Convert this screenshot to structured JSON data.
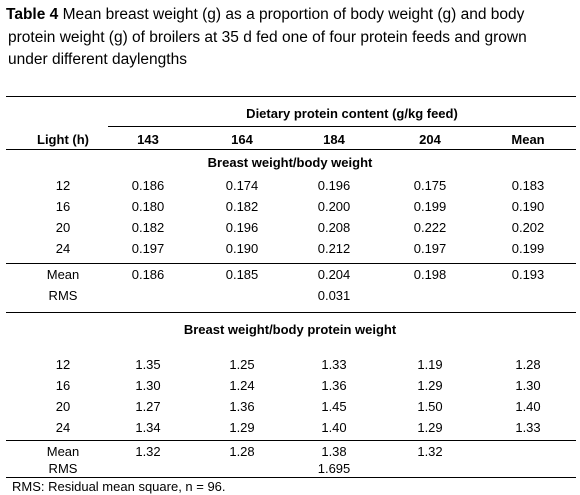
{
  "caption": {
    "label": "Table 4",
    "line1": " Mean breast weight (g) as a proportion of body weight (g) and body",
    "line2": "protein weight (g) of broilers at 35 d fed one of four protein feeds and grown",
    "line3": "under different daylengths"
  },
  "header": {
    "group_label": "Dietary protein content (g/kg feed)",
    "light_label": "Light (h)",
    "columns": [
      "143",
      "164",
      "184",
      "204",
      "Mean"
    ]
  },
  "section1": {
    "title": "Breast weight/body weight",
    "rows": [
      {
        "light": "12",
        "values": [
          "0.186",
          "0.174",
          "0.196",
          "0.175",
          "0.183"
        ]
      },
      {
        "light": "16",
        "values": [
          "0.180",
          "0.182",
          "0.200",
          "0.199",
          "0.190"
        ]
      },
      {
        "light": "20",
        "values": [
          "0.182",
          "0.196",
          "0.208",
          "0.222",
          "0.202"
        ]
      },
      {
        "light": "24",
        "values": [
          "0.197",
          "0.190",
          "0.212",
          "0.197",
          "0.199"
        ]
      }
    ],
    "mean": {
      "label": "Mean",
      "values": [
        "0.186",
        "0.185",
        "0.204",
        "0.198",
        "0.193"
      ]
    },
    "rms": {
      "label": "RMS",
      "value": "0.031"
    }
  },
  "section2": {
    "title": "Breast weight/body protein weight",
    "rows": [
      {
        "light": "12",
        "values": [
          "1.35",
          "1.25",
          "1.33",
          "1.19",
          "1.28"
        ]
      },
      {
        "light": "16",
        "values": [
          "1.30",
          "1.24",
          "1.36",
          "1.29",
          "1.30"
        ]
      },
      {
        "light": "20",
        "values": [
          "1.27",
          "1.36",
          "1.45",
          "1.50",
          "1.40"
        ]
      },
      {
        "light": "24",
        "values": [
          "1.34",
          "1.29",
          "1.40",
          "1.29",
          "1.33"
        ]
      }
    ],
    "mean": {
      "label": "Mean",
      "values": [
        "1.32",
        "1.28",
        "1.38",
        "1.32",
        ""
      ]
    },
    "rms": {
      "label": "RMS",
      "value": "1.695"
    }
  },
  "footnote": "RMS: Residual mean square, n = 96."
}
